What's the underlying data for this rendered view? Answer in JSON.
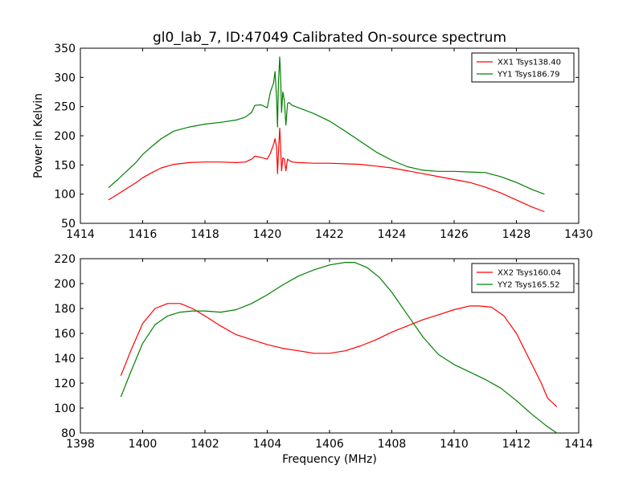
{
  "title": "gl0_lab_7, ID:47049 Calibrated On-source spectrum",
  "colors": {
    "xx": "#ff0000",
    "yy": "#008000"
  },
  "chart_data": [
    {
      "type": "line",
      "xlabel": "",
      "ylabel": "Power in Kelvin",
      "xlim": [
        1414,
        1430
      ],
      "ylim": [
        50,
        350
      ],
      "xticks": [
        1414,
        1416,
        1418,
        1420,
        1422,
        1424,
        1426,
        1428,
        1430
      ],
      "yticks": [
        50,
        100,
        150,
        200,
        250,
        300,
        350
      ],
      "legend_position": "top-right",
      "series": [
        {
          "name": "XX1 Tsys138.40",
          "color": "#ff0000",
          "x": [
            1414.9,
            1415.2,
            1415.5,
            1415.8,
            1416.0,
            1416.3,
            1416.6,
            1417.0,
            1417.5,
            1418.0,
            1418.5,
            1419.0,
            1419.3,
            1419.5,
            1419.6,
            1419.8,
            1420.0,
            1420.1,
            1420.2,
            1420.25,
            1420.3,
            1420.33,
            1420.36,
            1420.4,
            1420.43,
            1420.46,
            1420.5,
            1420.55,
            1420.6,
            1420.65,
            1420.7,
            1420.8,
            1421.0,
            1421.5,
            1422.0,
            1422.5,
            1423.0,
            1423.5,
            1424.0,
            1424.5,
            1425.0,
            1425.5,
            1426.0,
            1426.5,
            1427.0,
            1427.5,
            1428.0,
            1428.5,
            1428.9
          ],
          "y": [
            90,
            100,
            110,
            120,
            128,
            137,
            145,
            151,
            154,
            155,
            155,
            154,
            155,
            160,
            165,
            163,
            160,
            170,
            185,
            195,
            180,
            135,
            170,
            213,
            180,
            140,
            162,
            160,
            140,
            160,
            158,
            155,
            154,
            153,
            153,
            152,
            151,
            148,
            145,
            140,
            135,
            130,
            125,
            120,
            112,
            102,
            90,
            78,
            70
          ]
        },
        {
          "name": "YY1 Tsys186.79",
          "color": "#008000",
          "x": [
            1414.9,
            1415.2,
            1415.5,
            1415.8,
            1416.0,
            1416.3,
            1416.6,
            1417.0,
            1417.5,
            1418.0,
            1418.5,
            1419.0,
            1419.3,
            1419.5,
            1419.6,
            1419.8,
            1420.0,
            1420.1,
            1420.2,
            1420.25,
            1420.3,
            1420.33,
            1420.36,
            1420.4,
            1420.43,
            1420.46,
            1420.5,
            1420.55,
            1420.6,
            1420.65,
            1420.7,
            1420.8,
            1421.0,
            1421.5,
            1422.0,
            1422.5,
            1423.0,
            1423.5,
            1424.0,
            1424.5,
            1425.0,
            1425.5,
            1426.0,
            1426.5,
            1427.0,
            1427.5,
            1428.0,
            1428.5,
            1428.9
          ],
          "y": [
            111,
            125,
            140,
            155,
            168,
            182,
            195,
            208,
            215,
            220,
            223,
            227,
            232,
            240,
            252,
            253,
            248,
            275,
            290,
            310,
            265,
            215,
            290,
            335,
            300,
            240,
            275,
            260,
            218,
            255,
            257,
            252,
            248,
            238,
            225,
            208,
            190,
            172,
            158,
            147,
            141,
            139,
            139,
            138,
            137,
            130,
            120,
            108,
            100
          ]
        }
      ]
    },
    {
      "type": "line",
      "xlabel": "Frequency (MHz)",
      "ylabel": "",
      "xlim": [
        1398,
        1414
      ],
      "ylim": [
        80,
        220
      ],
      "xticks": [
        1398,
        1400,
        1402,
        1404,
        1406,
        1408,
        1410,
        1412,
        1414
      ],
      "yticks": [
        80,
        100,
        120,
        140,
        160,
        180,
        200,
        220
      ],
      "legend_position": "top-right",
      "series": [
        {
          "name": "XX2 Tsys160.04",
          "color": "#ff0000",
          "x": [
            1399.3,
            1399.6,
            1400.0,
            1400.4,
            1400.8,
            1401.2,
            1401.6,
            1402.0,
            1402.5,
            1403.0,
            1403.5,
            1404.0,
            1404.5,
            1405.0,
            1405.5,
            1406.0,
            1406.5,
            1407.0,
            1407.5,
            1408.0,
            1408.5,
            1409.0,
            1409.5,
            1410.0,
            1410.5,
            1410.8,
            1411.2,
            1411.6,
            1412.0,
            1412.4,
            1412.8,
            1413.0,
            1413.3
          ],
          "y": [
            126,
            145,
            168,
            180,
            184,
            184,
            180,
            174,
            166,
            159,
            155,
            151,
            148,
            146,
            144,
            144,
            146,
            150,
            155,
            161,
            166,
            171,
            175,
            179,
            182,
            182,
            181,
            174,
            160,
            140,
            120,
            108,
            101
          ]
        },
        {
          "name": "YY2 Tsys165.52",
          "color": "#008000",
          "x": [
            1399.3,
            1399.6,
            1400.0,
            1400.4,
            1400.8,
            1401.2,
            1401.6,
            1402.0,
            1402.5,
            1403.0,
            1403.5,
            1404.0,
            1404.5,
            1405.0,
            1405.5,
            1406.0,
            1406.5,
            1406.8,
            1407.2,
            1407.6,
            1408.0,
            1408.5,
            1409.0,
            1409.5,
            1410.0,
            1410.5,
            1411.0,
            1411.5,
            1412.0,
            1412.5,
            1413.0,
            1413.3
          ],
          "y": [
            109,
            128,
            152,
            167,
            174,
            177,
            178,
            178,
            177,
            179,
            184,
            191,
            199,
            206,
            211,
            215,
            217,
            217,
            213,
            205,
            193,
            175,
            157,
            143,
            135,
            129,
            123,
            116,
            106,
            95,
            85,
            80
          ]
        }
      ]
    }
  ]
}
